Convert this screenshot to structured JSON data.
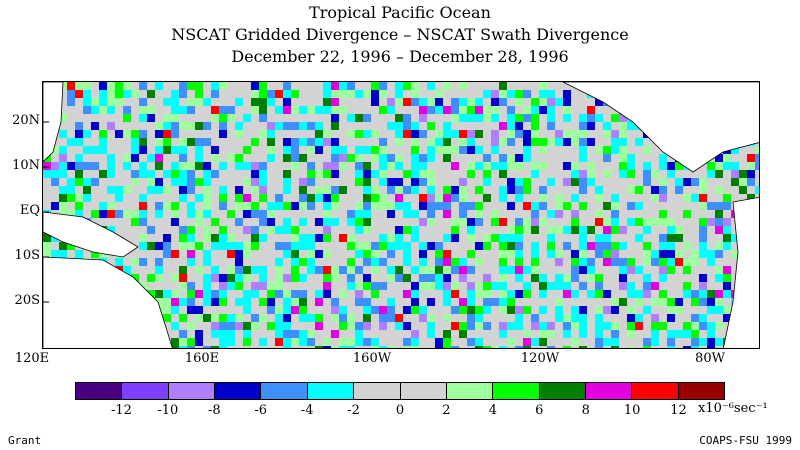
{
  "title_lines": [
    "Tropical Pacific Ocean",
    "NSCAT Gridded Divergence – NSCAT Swath Divergence",
    "December 22, 1996 – December 28, 1996"
  ],
  "map": {
    "lat_labels": [
      "20N",
      "10N",
      "EQ",
      "10S",
      "20S"
    ],
    "lon_labels": [
      "120E",
      "160E",
      "160W",
      "120W",
      "80W"
    ],
    "land_color": "#ffffff",
    "neutral_color": "#d3d3d3"
  },
  "colorbar": {
    "colors": [
      "#4b0082",
      "#7f3fff",
      "#b07fff",
      "#0000cd",
      "#3f8fff",
      "#00ffff",
      "#d3d3d3",
      "#d3d3d3",
      "#9fff9f",
      "#00ff00",
      "#007f00",
      "#e000e0",
      "#ff0000",
      "#9b0000"
    ],
    "tick_labels": [
      "-12",
      "-10",
      "-8",
      "-6",
      "-4",
      "-2",
      "0",
      "2",
      "4",
      "6",
      "8",
      "10",
      "12"
    ],
    "units": "x10⁻⁶sec⁻¹"
  },
  "footer": {
    "left": "Grant",
    "right": "COAPS-FSU 1999"
  }
}
